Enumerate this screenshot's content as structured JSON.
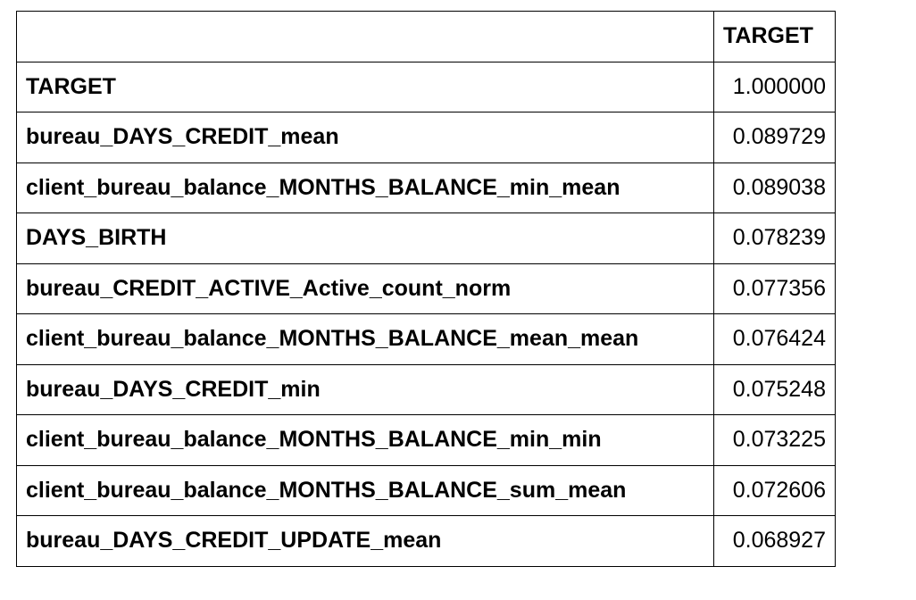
{
  "table": {
    "index_header": "",
    "column_header": "TARGET",
    "rows": [
      {
        "name": "TARGET",
        "value": "1.000000"
      },
      {
        "name": "bureau_DAYS_CREDIT_mean",
        "value": "0.089729"
      },
      {
        "name": "client_bureau_balance_MONTHS_BALANCE_min_mean",
        "value": "0.089038"
      },
      {
        "name": "DAYS_BIRTH",
        "value": "0.078239"
      },
      {
        "name": "bureau_CREDIT_ACTIVE_Active_count_norm",
        "value": "0.077356"
      },
      {
        "name": "client_bureau_balance_MONTHS_BALANCE_mean_mean",
        "value": "0.076424"
      },
      {
        "name": "bureau_DAYS_CREDIT_min",
        "value": "0.075248"
      },
      {
        "name": "client_bureau_balance_MONTHS_BALANCE_min_min",
        "value": "0.073225"
      },
      {
        "name": "client_bureau_balance_MONTHS_BALANCE_sum_mean",
        "value": "0.072606"
      },
      {
        "name": "bureau_DAYS_CREDIT_UPDATE_mean",
        "value": "0.068927"
      }
    ]
  }
}
